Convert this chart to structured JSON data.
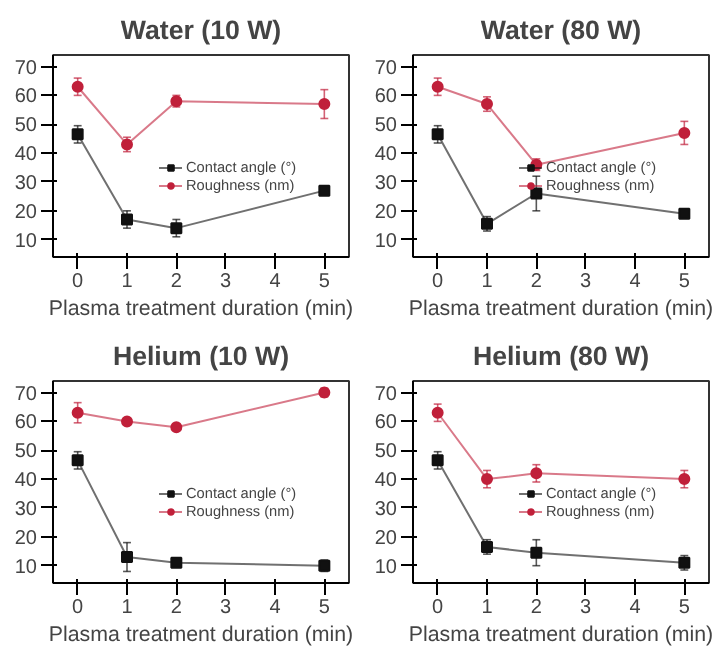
{
  "chart_data": [
    {
      "type": "line",
      "title": "Water (10 W)",
      "xlabel": "Plasma treatment duration (min)",
      "x": [
        0,
        1,
        2,
        5
      ],
      "xlim": [
        -0.5,
        5.5
      ],
      "xticks": [
        0,
        1,
        2,
        3,
        4,
        5
      ],
      "ylim": [
        4,
        74
      ],
      "yticks": [
        10,
        20,
        30,
        40,
        50,
        60,
        70
      ],
      "grid": false,
      "legend": "right",
      "line_style": "solid",
      "series": [
        {
          "name": "Contact angle (°)",
          "color": "#111111",
          "marker": "square",
          "values": [
            46.5,
            17,
            14,
            27
          ],
          "errors": [
            3,
            3,
            3,
            null
          ]
        },
        {
          "name": "Roughness (nm)",
          "color": "#c0203a",
          "marker": "circle",
          "values": [
            63,
            43,
            58,
            57
          ],
          "errors": [
            3,
            2.5,
            2,
            5
          ]
        }
      ]
    },
    {
      "type": "line",
      "title": "Water (80 W)",
      "xlabel": "Plasma treatment duration (min)",
      "x": [
        0,
        1,
        2,
        5
      ],
      "xlim": [
        -0.5,
        5.5
      ],
      "xticks": [
        0,
        1,
        2,
        3,
        4,
        5
      ],
      "ylim": [
        4,
        74
      ],
      "yticks": [
        10,
        20,
        30,
        40,
        50,
        60,
        70
      ],
      "grid": false,
      "legend": "right",
      "line_style": "solid",
      "series": [
        {
          "name": "Contact angle (°)",
          "color": "#111111",
          "marker": "square",
          "values": [
            46.5,
            15.5,
            26,
            19
          ],
          "errors": [
            3,
            2.5,
            6,
            null
          ]
        },
        {
          "name": "Roughness (nm)",
          "color": "#c0203a",
          "marker": "circle",
          "values": [
            63,
            57,
            36,
            47
          ],
          "errors": [
            3,
            2.5,
            2,
            4
          ]
        }
      ]
    },
    {
      "type": "line",
      "title": "Helium (10 W)",
      "xlabel": "Plasma treatment duration (min)",
      "x": [
        0,
        1,
        2,
        5
      ],
      "xlim": [
        -0.5,
        5.5
      ],
      "xticks": [
        0,
        1,
        2,
        3,
        4,
        5
      ],
      "ylim": [
        4,
        74
      ],
      "yticks": [
        10,
        20,
        30,
        40,
        50,
        60,
        70
      ],
      "grid": false,
      "legend": "right",
      "line_style": "solid",
      "series": [
        {
          "name": "Contact angle (°)",
          "color": "#111111",
          "marker": "square",
          "values": [
            46.5,
            13,
            11,
            10
          ],
          "errors": [
            3,
            5,
            null,
            2
          ]
        },
        {
          "name": "Roughness (nm)",
          "color": "#c0203a",
          "marker": "circle",
          "values": [
            63,
            60,
            58,
            70
          ],
          "errors": [
            3.5,
            null,
            null,
            1.5
          ]
        }
      ]
    },
    {
      "type": "line",
      "title": "Helium (80 W)",
      "xlabel": "Plasma treatment duration (min)",
      "x": [
        0,
        1,
        2,
        5
      ],
      "xlim": [
        -0.5,
        5.5
      ],
      "xticks": [
        0,
        1,
        2,
        3,
        4,
        5
      ],
      "ylim": [
        4,
        74
      ],
      "yticks": [
        10,
        20,
        30,
        40,
        50,
        60,
        70
      ],
      "grid": false,
      "legend": "right",
      "line_style": "solid",
      "series": [
        {
          "name": "Contact angle (°)",
          "color": "#111111",
          "marker": "square",
          "values": [
            46.5,
            16.5,
            14.5,
            11
          ],
          "errors": [
            3,
            2.5,
            4.5,
            2.5
          ]
        },
        {
          "name": "Roughness (nm)",
          "color": "#c0203a",
          "marker": "circle",
          "values": [
            63,
            40,
            42,
            40
          ],
          "errors": [
            3,
            3,
            3,
            3
          ]
        }
      ]
    }
  ]
}
